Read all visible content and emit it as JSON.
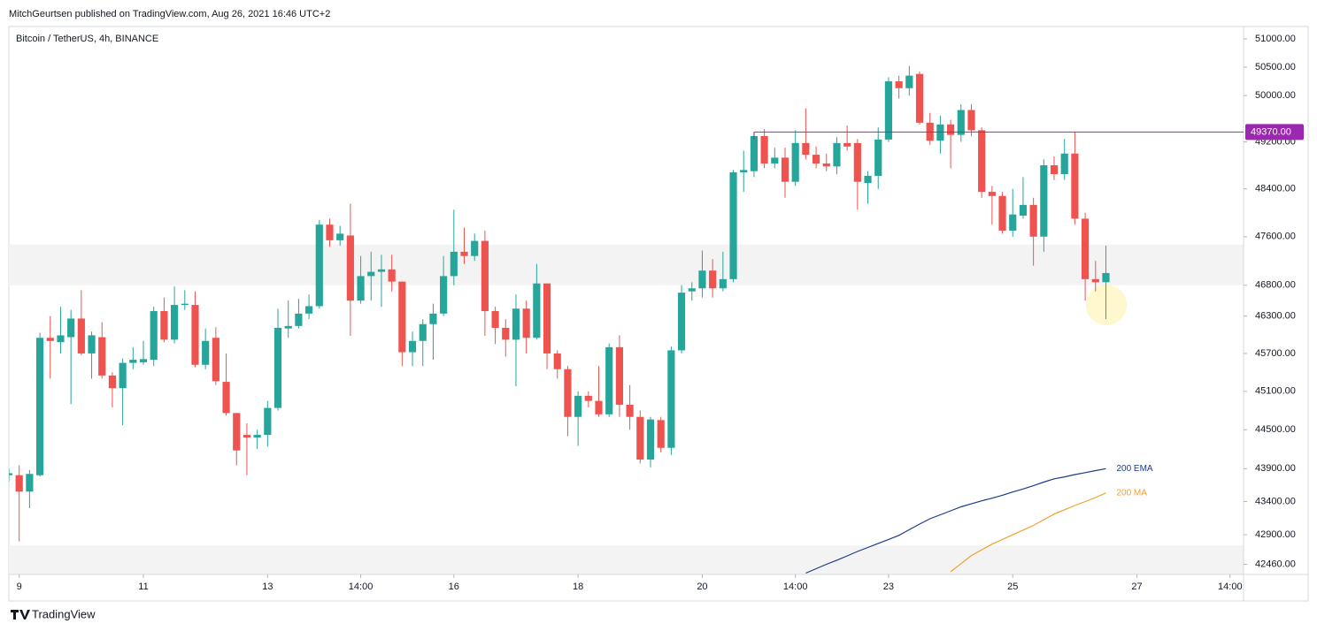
{
  "header": {
    "text": "MitchGeurtsen published on TradingView.com, Aug 26, 2021 16:46 UTC+2"
  },
  "footer": {
    "brand": "TradingView"
  },
  "chart_data": {
    "type": "candlestick",
    "title": "Bitcoin / TetherUS, 4h, BINANCE",
    "up_color": "#26a69a",
    "down_color": "#ef5350",
    "log_scale": true,
    "grid": false,
    "xlim": [
      0,
      119.3
    ],
    "xticks": [
      {
        "value": 1,
        "label": "9"
      },
      {
        "value": 13,
        "label": "11"
      },
      {
        "value": 25,
        "label": "13"
      },
      {
        "value": 34,
        "label": "14:00"
      },
      {
        "value": 43,
        "label": "16"
      },
      {
        "value": 55,
        "label": "18"
      },
      {
        "value": 67,
        "label": "20"
      },
      {
        "value": 76,
        "label": "14:00"
      },
      {
        "value": 85,
        "label": "23"
      },
      {
        "value": 97,
        "label": "25"
      },
      {
        "value": 109,
        "label": "27"
      },
      {
        "value": 118,
        "label": "14:00"
      }
    ],
    "ylim": [
      42310,
      51220
    ],
    "yticks": [
      {
        "value": 51000,
        "label": "51000.00"
      },
      {
        "value": 50500,
        "label": "50500.00"
      },
      {
        "value": 50000,
        "label": "50000.00"
      },
      {
        "value": 49200,
        "label": "49200.00"
      },
      {
        "value": 48400,
        "label": "48400.00"
      },
      {
        "value": 47600,
        "label": "47600.00"
      },
      {
        "value": 46800,
        "label": "46800.00"
      },
      {
        "value": 46300,
        "label": "46300.00"
      },
      {
        "value": 45700,
        "label": "45700.00"
      },
      {
        "value": 45100,
        "label": "45100.00"
      },
      {
        "value": 44500,
        "label": "44500.00"
      },
      {
        "value": 43900,
        "label": "43900.00"
      },
      {
        "value": 43400,
        "label": "43400.00"
      },
      {
        "value": 42900,
        "label": "42900.00"
      },
      {
        "value": 42460,
        "label": "42460.00"
      }
    ],
    "open": [
      43800,
      43800,
      43550,
      43800,
      45950,
      45880,
      45960,
      46260,
      45700,
      45960,
      45350,
      45150,
      45550,
      45560,
      45600,
      46380,
      45920,
      46480,
      46480,
      45520,
      45950,
      45250,
      44760,
      44420,
      44380,
      44420,
      44840,
      46100,
      46140,
      46340,
      46460,
      47800,
      47540,
      47620,
      46550,
      46950,
      47020,
      47060,
      46860,
      45720,
      45900,
      46170,
      46340,
      46950,
      47350,
      47280,
      47530,
      46380,
      46110,
      45920,
      46420,
      45950,
      46830,
      45700,
      45450,
      44700,
      45030,
      44950,
      44740,
      45800,
      44890,
      44700,
      44040,
      44650,
      44220,
      45750,
      46700,
      46750,
      47040,
      46750,
      46900,
      48680,
      48700,
      49300,
      48830,
      48930,
      48520,
      49180,
      48980,
      48830,
      48780,
      49180,
      49180,
      48500,
      48620,
      49240,
      50250,
      50130,
      50380,
      49530,
      49220,
      49500,
      49320,
      49750,
      49400,
      48350,
      48280,
      47700,
      47950,
      48130,
      47600,
      48800,
      48650,
      49000,
      47900,
      46900,
      46850
    ],
    "high": [
      43900,
      43950,
      43880,
      46030,
      46300,
      46450,
      46400,
      46720,
      46050,
      46200,
      45400,
      45620,
      45800,
      45900,
      46450,
      46600,
      46780,
      46720,
      46700,
      46100,
      46120,
      45700,
      44760,
      44600,
      44500,
      44950,
      46420,
      46550,
      46580,
      46650,
      47880,
      47900,
      47780,
      48150,
      47280,
      47350,
      47300,
      47300,
      46860,
      46050,
      46250,
      46500,
      47280,
      48050,
      47750,
      47650,
      47700,
      46450,
      46250,
      46650,
      46550,
      47150,
      46830,
      45750,
      45500,
      45100,
      45100,
      45500,
      45860,
      45990,
      45200,
      44800,
      44700,
      44700,
      45810,
      46800,
      46850,
      47370,
      47230,
      47350,
      48720,
      49050,
      49370,
      49420,
      49100,
      49100,
      49400,
      49780,
      49120,
      49000,
      49280,
      49480,
      49250,
      48700,
      49450,
      50320,
      50350,
      50520,
      50420,
      49700,
      49650,
      49580,
      49850,
      49850,
      49450,
      48450,
      48350,
      48400,
      48600,
      48250,
      48900,
      48950,
      49250,
      49370,
      48000,
      47200,
      47450
    ],
    "low": [
      43700,
      42800,
      43300,
      43780,
      45300,
      45700,
      44900,
      45670,
      45300,
      45300,
      44850,
      44570,
      45450,
      45520,
      45500,
      45880,
      45860,
      46400,
      45480,
      45450,
      45200,
      44720,
      43950,
      43800,
      44200,
      44240,
      44800,
      45950,
      46100,
      46250,
      46420,
      47430,
      47450,
      45980,
      46500,
      46550,
      46450,
      46700,
      45500,
      45500,
      45500,
      45600,
      46300,
      46800,
      47150,
      47200,
      45980,
      45850,
      45650,
      45180,
      45700,
      45920,
      45450,
      45300,
      44400,
      44250,
      44850,
      44700,
      44700,
      44700,
      44500,
      43980,
      43920,
      44150,
      44110,
      45700,
      46550,
      46600,
      46600,
      46700,
      46850,
      48350,
      48600,
      48750,
      48750,
      48250,
      48450,
      48900,
      48750,
      48700,
      48650,
      49050,
      48050,
      48150,
      48400,
      49200,
      49950,
      50000,
      49500,
      49150,
      49000,
      48750,
      49200,
      49300,
      48250,
      47800,
      47650,
      47600,
      47900,
      47120,
      47350,
      48550,
      48550,
      47800,
      46550,
      46700,
      46250
    ],
    "close": [
      43830,
      43550,
      43820,
      45950,
      45900,
      45990,
      46260,
      45700,
      45990,
      45350,
      45150,
      45550,
      45600,
      45610,
      46380,
      45920,
      46480,
      46500,
      45520,
      45900,
      45260,
      44760,
      44180,
      44380,
      44420,
      44840,
      46110,
      46140,
      46340,
      46460,
      47800,
      47540,
      47650,
      46550,
      46950,
      47020,
      47060,
      46860,
      45720,
      45900,
      46170,
      46340,
      46950,
      47350,
      47280,
      47530,
      46380,
      46110,
      45920,
      46420,
      45950,
      46830,
      45700,
      45450,
      44700,
      45030,
      44950,
      44740,
      45800,
      44890,
      44700,
      44040,
      44660,
      44220,
      45750,
      46680,
      46750,
      47040,
      46750,
      46900,
      48680,
      48720,
      49300,
      48830,
      48930,
      48520,
      49180,
      48980,
      48830,
      48780,
      49180,
      49120,
      48520,
      48620,
      49240,
      50250,
      50130,
      50350,
      49530,
      49220,
      49500,
      49320,
      49750,
      49400,
      48350,
      48280,
      47700,
      47970,
      48130,
      47600,
      48800,
      48650,
      49000,
      47900,
      46900,
      46850,
      47000
    ],
    "series": [
      {
        "name": "200 EMA",
        "color": "#1e3a8a",
        "values": [
          null,
          null,
          null,
          null,
          null,
          null,
          null,
          null,
          null,
          null,
          null,
          null,
          null,
          null,
          null,
          null,
          null,
          null,
          null,
          null,
          null,
          null,
          null,
          null,
          null,
          null,
          null,
          null,
          null,
          null,
          null,
          null,
          null,
          null,
          null,
          null,
          null,
          null,
          null,
          null,
          null,
          null,
          null,
          null,
          null,
          null,
          null,
          null,
          null,
          null,
          null,
          null,
          null,
          null,
          null,
          null,
          null,
          null,
          null,
          null,
          null,
          null,
          null,
          null,
          null,
          null,
          null,
          null,
          null,
          null,
          null,
          null,
          null,
          null,
          null,
          null,
          null,
          42330,
          42395,
          42460,
          42520,
          42585,
          42650,
          42710,
          42770,
          42830,
          42890,
          42975,
          43060,
          43140,
          43200,
          43260,
          43320,
          43365,
          43410,
          43450,
          43495,
          43545,
          43590,
          43640,
          43695,
          43745,
          43775,
          43810,
          43840,
          43870,
          43900
        ]
      },
      {
        "name": "200 MA",
        "color": "#f0a030",
        "values": [
          null,
          null,
          null,
          null,
          null,
          null,
          null,
          null,
          null,
          null,
          null,
          null,
          null,
          null,
          null,
          null,
          null,
          null,
          null,
          null,
          null,
          null,
          null,
          null,
          null,
          null,
          null,
          null,
          null,
          null,
          null,
          null,
          null,
          null,
          null,
          null,
          null,
          null,
          null,
          null,
          null,
          null,
          null,
          null,
          null,
          null,
          null,
          null,
          null,
          null,
          null,
          null,
          null,
          null,
          null,
          null,
          null,
          null,
          null,
          null,
          null,
          null,
          null,
          null,
          null,
          null,
          null,
          null,
          null,
          null,
          null,
          null,
          null,
          null,
          null,
          null,
          null,
          null,
          null,
          null,
          null,
          null,
          null,
          null,
          null,
          null,
          null,
          null,
          null,
          null,
          null,
          42350,
          42470,
          42590,
          42675,
          42760,
          42830,
          42900,
          42970,
          43040,
          43125,
          43210,
          43275,
          43340,
          43400,
          43460,
          43530
        ]
      }
    ],
    "price_line": {
      "value": 49370,
      "label": "49370.00",
      "color": "#9c27b0"
    },
    "bands": [
      [
        46800,
        47470
      ],
      [
        42310,
        42740
      ]
    ],
    "band_color": "#f3f3f3"
  }
}
